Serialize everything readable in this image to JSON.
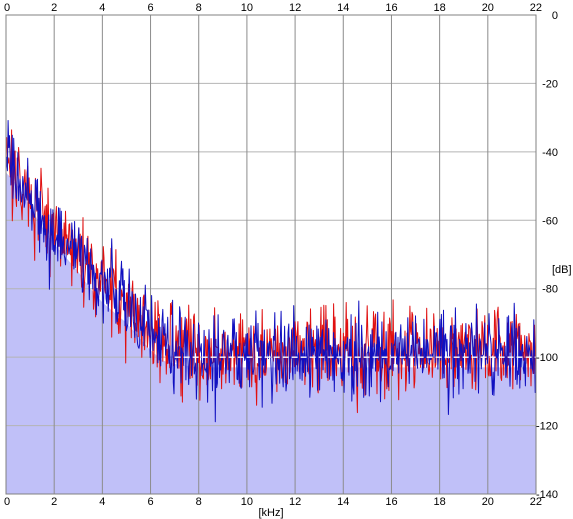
{
  "chart_data": {
    "type": "line",
    "title": "",
    "xlabel": "[kHz]",
    "ylabel": "[dB]",
    "xlim": [
      0,
      22
    ],
    "ylim": [
      -140,
      0
    ],
    "x_ticks": [
      0,
      2,
      4,
      6,
      8,
      10,
      12,
      14,
      16,
      18,
      20,
      22
    ],
    "y_ticks": [
      0,
      -20,
      -40,
      -60,
      -80,
      -100,
      -120,
      -140
    ],
    "x_tick_labels": [
      "0",
      "2",
      "4",
      "6",
      "8",
      "10",
      "12",
      "14",
      "16",
      "18",
      "20",
      "22"
    ],
    "y_tick_labels": [
      "0",
      "-20",
      "-40",
      "-60",
      "-80",
      "-100",
      "-120",
      "-140"
    ],
    "grid": true,
    "colors": {
      "background": "#ffffff",
      "grid": "#b4b4b4",
      "vertical_grid": "#8c8c8c",
      "fill": "#c0c0f8",
      "ref_line": "#ffffff"
    },
    "reference_level_db": -100,
    "fill_level": [
      {
        "x": 0.0,
        "y": -46
      },
      {
        "x": 0.5,
        "y": -50
      },
      {
        "x": 1.0,
        "y": -56
      },
      {
        "x": 1.5,
        "y": -62
      },
      {
        "x": 2.0,
        "y": -67
      },
      {
        "x": 2.5,
        "y": -71
      },
      {
        "x": 3.0,
        "y": -75
      },
      {
        "x": 3.5,
        "y": -80
      },
      {
        "x": 4.0,
        "y": -84
      },
      {
        "x": 4.5,
        "y": -87
      },
      {
        "x": 5.0,
        "y": -90
      },
      {
        "x": 5.5,
        "y": -94
      },
      {
        "x": 6.0,
        "y": -98
      },
      {
        "x": 6.5,
        "y": -101
      },
      {
        "x": 7.0,
        "y": -102
      },
      {
        "x": 8.0,
        "y": -103
      },
      {
        "x": 10.0,
        "y": -103
      },
      {
        "x": 12.0,
        "y": -103
      },
      {
        "x": 14.0,
        "y": -103
      },
      {
        "x": 16.0,
        "y": -103
      },
      {
        "x": 18.0,
        "y": -103
      },
      {
        "x": 20.0,
        "y": -103
      },
      {
        "x": 22.0,
        "y": -103
      }
    ],
    "series": [
      {
        "color": "#e01010",
        "envelope": [
          {
            "x": 0.0,
            "y": -38
          },
          {
            "x": 0.5,
            "y": -46
          },
          {
            "x": 1.0,
            "y": -53
          },
          {
            "x": 1.5,
            "y": -59
          },
          {
            "x": 2.0,
            "y": -64
          },
          {
            "x": 2.5,
            "y": -67
          },
          {
            "x": 3.0,
            "y": -71
          },
          {
            "x": 3.5,
            "y": -74
          },
          {
            "x": 4.0,
            "y": -78
          },
          {
            "x": 4.5,
            "y": -81
          },
          {
            "x": 5.0,
            "y": -84
          },
          {
            "x": 5.5,
            "y": -89
          },
          {
            "x": 6.0,
            "y": -92
          },
          {
            "x": 6.5,
            "y": -95
          },
          {
            "x": 7.0,
            "y": -97
          },
          {
            "x": 8.0,
            "y": -99
          },
          {
            "x": 10.0,
            "y": -99
          },
          {
            "x": 12.0,
            "y": -98
          },
          {
            "x": 14.0,
            "y": -98
          },
          {
            "x": 16.0,
            "y": -98
          },
          {
            "x": 18.0,
            "y": -97
          },
          {
            "x": 20.0,
            "y": -97
          },
          {
            "x": 22.0,
            "y": -98
          }
        ],
        "noise_db": 6,
        "seed": 17
      },
      {
        "color": "#1010c0",
        "envelope": [
          {
            "x": 0.0,
            "y": -38
          },
          {
            "x": 0.5,
            "y": -46
          },
          {
            "x": 1.0,
            "y": -53
          },
          {
            "x": 1.5,
            "y": -59
          },
          {
            "x": 2.0,
            "y": -64
          },
          {
            "x": 2.5,
            "y": -67
          },
          {
            "x": 3.0,
            "y": -71
          },
          {
            "x": 3.5,
            "y": -74
          },
          {
            "x": 4.0,
            "y": -78
          },
          {
            "x": 4.5,
            "y": -81
          },
          {
            "x": 5.0,
            "y": -84
          },
          {
            "x": 5.5,
            "y": -89
          },
          {
            "x": 6.0,
            "y": -92
          },
          {
            "x": 6.5,
            "y": -95
          },
          {
            "x": 7.0,
            "y": -97
          },
          {
            "x": 8.0,
            "y": -99
          },
          {
            "x": 10.0,
            "y": -99
          },
          {
            "x": 12.0,
            "y": -99
          },
          {
            "x": 14.0,
            "y": -99
          },
          {
            "x": 16.0,
            "y": -99
          },
          {
            "x": 18.0,
            "y": -98
          },
          {
            "x": 20.0,
            "y": -98
          },
          {
            "x": 22.0,
            "y": -99
          }
        ],
        "noise_db": 6,
        "seed": 91
      }
    ]
  }
}
